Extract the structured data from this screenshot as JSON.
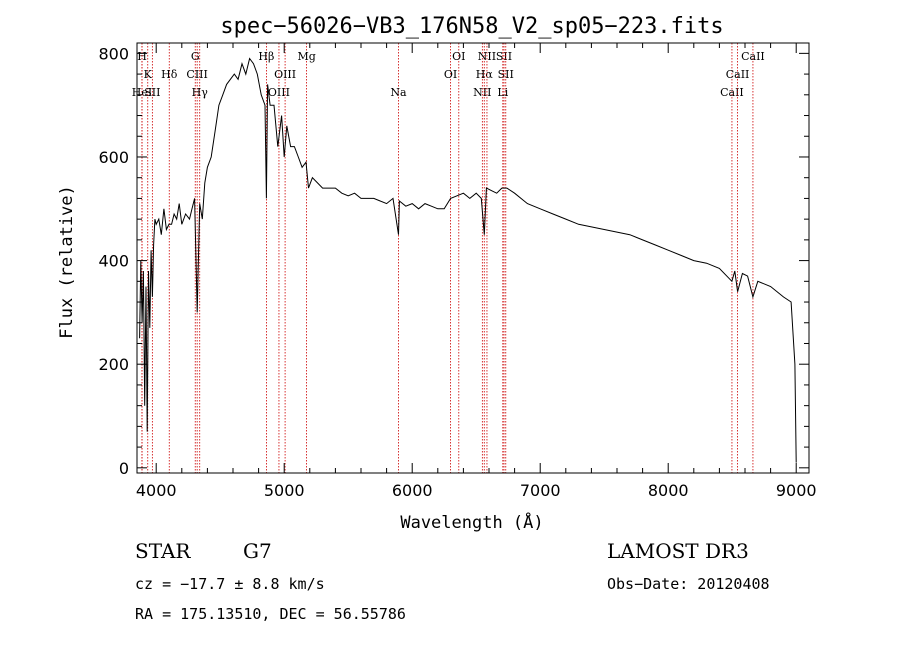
{
  "chart_data": {
    "type": "line",
    "title": "spec−56026−VB3_176N58_V2_sp05−223.fits",
    "xlabel": "Wavelength (Å)",
    "ylabel": "Flux (relative)",
    "xlim": [
      3850,
      9100
    ],
    "ylim": [
      -10,
      820
    ],
    "xticks": [
      4000,
      5000,
      6000,
      7000,
      8000,
      9000
    ],
    "yticks": [
      0,
      200,
      400,
      600,
      800
    ],
    "grid": false,
    "series": [
      {
        "name": "spectrum",
        "x": [
          3870,
          3880,
          3890,
          3900,
          3910,
          3920,
          3930,
          3940,
          3950,
          3960,
          3970,
          3980,
          3990,
          4000,
          4020,
          4040,
          4060,
          4080,
          4100,
          4120,
          4140,
          4160,
          4180,
          4200,
          4230,
          4260,
          4280,
          4300,
          4320,
          4340,
          4360,
          4380,
          4400,
          4430,
          4460,
          4490,
          4520,
          4550,
          4580,
          4610,
          4640,
          4670,
          4700,
          4730,
          4760,
          4790,
          4820,
          4850,
          4861,
          4870,
          4890,
          4920,
          4950,
          4980,
          5000,
          5020,
          5050,
          5080,
          5110,
          5140,
          5170,
          5190,
          5220,
          5260,
          5300,
          5350,
          5400,
          5450,
          5500,
          5550,
          5600,
          5650,
          5700,
          5750,
          5800,
          5850,
          5893,
          5900,
          5950,
          6000,
          6050,
          6100,
          6150,
          6200,
          6250,
          6300,
          6350,
          6400,
          6450,
          6500,
          6540,
          6563,
          6580,
          6620,
          6660,
          6700,
          6740,
          6800,
          6900,
          7000,
          7100,
          7200,
          7300,
          7400,
          7500,
          7600,
          7700,
          7800,
          7900,
          8000,
          8100,
          8200,
          8300,
          8400,
          8498,
          8520,
          8542,
          8580,
          8620,
          8662,
          8700,
          8800,
          8900,
          8960,
          8990,
          9000
        ],
        "y": [
          250,
          400,
          280,
          380,
          120,
          350,
          70,
          380,
          270,
          420,
          330,
          430,
          480,
          470,
          480,
          450,
          500,
          460,
          470,
          470,
          490,
          480,
          510,
          470,
          490,
          480,
          500,
          520,
          300,
          510,
          480,
          550,
          580,
          600,
          650,
          700,
          720,
          740,
          750,
          760,
          750,
          780,
          760,
          790,
          780,
          760,
          720,
          700,
          520,
          740,
          700,
          700,
          620,
          680,
          600,
          660,
          620,
          620,
          600,
          580,
          590,
          540,
          560,
          550,
          540,
          540,
          540,
          530,
          525,
          530,
          520,
          520,
          520,
          515,
          510,
          520,
          450,
          515,
          505,
          510,
          500,
          510,
          505,
          500,
          500,
          520,
          525,
          530,
          520,
          530,
          520,
          450,
          540,
          535,
          530,
          540,
          540,
          530,
          510,
          500,
          490,
          480,
          470,
          465,
          460,
          455,
          450,
          440,
          430,
          420,
          410,
          400,
          395,
          385,
          360,
          380,
          340,
          375,
          370,
          330,
          360,
          350,
          330,
          320,
          200,
          10
        ]
      }
    ],
    "spectral_lines": [
      {
        "label": "H",
        "wavelength": 3889
      },
      {
        "label": "K",
        "wavelength": 3934
      },
      {
        "label": "HeI",
        "wavelength": 3889
      },
      {
        "label": "SII",
        "wavelength": 3970
      },
      {
        "label": "Hδ",
        "wavelength": 4102
      },
      {
        "label": "G",
        "wavelength": 4305
      },
      {
        "label": "CIII",
        "wavelength": 4320
      },
      {
        "label": "Hγ",
        "wavelength": 4340
      },
      {
        "label": "Hβ",
        "wavelength": 4861
      },
      {
        "label": "OIII",
        "wavelength": 4959
      },
      {
        "label": "OIII",
        "wavelength": 5007
      },
      {
        "label": "Mg",
        "wavelength": 5175
      },
      {
        "label": "Na",
        "wavelength": 5893
      },
      {
        "label": "OI",
        "wavelength": 6300
      },
      {
        "label": "OI",
        "wavelength": 6364
      },
      {
        "label": "NII",
        "wavelength": 6548
      },
      {
        "label": "Hα",
        "wavelength": 6563
      },
      {
        "label": "NII",
        "wavelength": 6584
      },
      {
        "label": "SII",
        "wavelength": 6717
      },
      {
        "label": "SII",
        "wavelength": 6731
      },
      {
        "label": "Li",
        "wavelength": 6708
      },
      {
        "label": "CaII",
        "wavelength": 8498
      },
      {
        "label": "CaII",
        "wavelength": 8542
      },
      {
        "label": "CaII",
        "wavelength": 8662
      }
    ]
  },
  "info": {
    "object_class": "STAR",
    "subclass": "G7",
    "survey": "LAMOST DR3",
    "cz": "cz = −17.7 ± 8.8 km/s",
    "obs_date": "Obs−Date: 20120408",
    "coords": "RA = 175.13510, DEC =  56.55786"
  },
  "colors": {
    "line_markers": "#cc0000",
    "spectrum": "#000000",
    "axes": "#000000"
  }
}
